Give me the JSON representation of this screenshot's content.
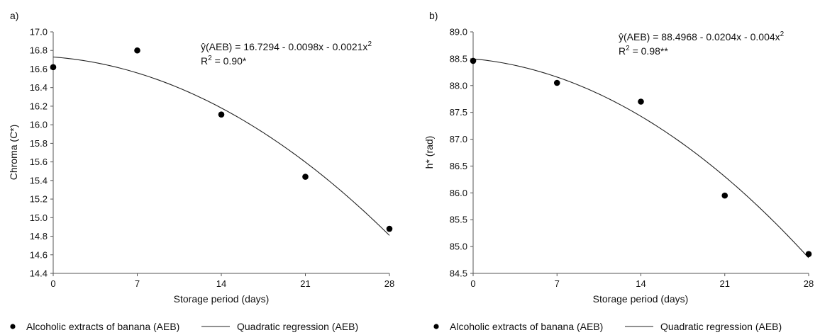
{
  "chart_data": [
    {
      "type": "scatter",
      "panel_label": "a)",
      "xlabel": "Storage period (days)",
      "ylabel": "Chroma (C*)",
      "xlim": [
        0,
        28
      ],
      "ylim": [
        14.4,
        17.0
      ],
      "xticks": [
        "0",
        "7",
        "14",
        "21",
        "28"
      ],
      "yticks": [
        "14.4",
        "14.6",
        "14.8",
        "15.0",
        "15.2",
        "15.4",
        "15.6",
        "15.8",
        "16.0",
        "16.2",
        "16.4",
        "16.6",
        "16.8",
        "17.0"
      ],
      "series": [
        {
          "name": "Alcoholic extracts of banana (AEB)",
          "kind": "points",
          "x": [
            0,
            7,
            14,
            21,
            28
          ],
          "y": [
            16.62,
            16.8,
            16.11,
            15.44,
            14.88
          ]
        },
        {
          "name": "Quadratic regression (AEB)",
          "kind": "curve",
          "coefficients": [
            16.7294,
            -0.0098,
            -0.0021
          ]
        }
      ],
      "equation": "ŷ(AEB) = 16.7294 - 0.0098x - 0.0021x",
      "equation_exponent": "2",
      "r2_label": "R",
      "r2_exponent": "2",
      "r2_value": " = 0.90*",
      "grid": false
    },
    {
      "type": "scatter",
      "panel_label": "b)",
      "xlabel": "Storage period (days)",
      "ylabel": "h* (rad)",
      "xlim": [
        0,
        28
      ],
      "ylim": [
        84.5,
        89.0
      ],
      "xticks": [
        "0",
        "7",
        "14",
        "21",
        "28"
      ],
      "yticks": [
        "84.5",
        "85.0",
        "85.5",
        "86.0",
        "86.5",
        "87.0",
        "87.5",
        "88.0",
        "88.5",
        "89.0"
      ],
      "series": [
        {
          "name": "Alcoholic extracts of banana (AEB)",
          "kind": "points",
          "x": [
            0,
            7,
            14,
            21,
            28
          ],
          "y": [
            88.46,
            88.05,
            87.7,
            85.95,
            84.86
          ]
        },
        {
          "name": "Quadratic regression (AEB)",
          "kind": "curve",
          "coefficients": [
            88.4968,
            -0.0204,
            -0.004
          ]
        }
      ],
      "equation": "ŷ(AEB) = 88.4968 - 0.0204x - 0.004x",
      "equation_exponent": "2",
      "r2_label": "R",
      "r2_exponent": "2",
      "r2_value": " = 0.98**",
      "grid": false
    }
  ],
  "legend": {
    "points_label": "Alcoholic extracts of banana (AEB)",
    "curve_label": "Quadratic regression (AEB)"
  }
}
